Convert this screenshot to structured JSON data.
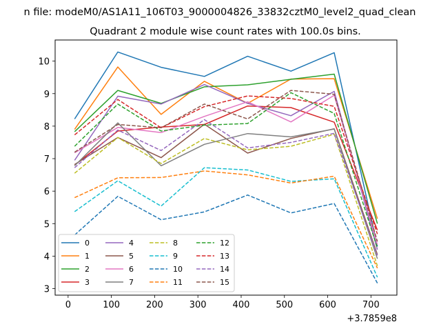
{
  "chart_data": {
    "type": "line",
    "title": "Quadrant 2 module wise count rates with 100.0s bins.",
    "suptitle": "n file: modeM0/AS1A11_106T03_9000004826_33832cztM0_level2_quad_clean",
    "offset_label": "+3.7859e8",
    "xlabel": "",
    "ylabel": "",
    "xlim": [
      -30,
      760
    ],
    "ylim": [
      2.8,
      10.65
    ],
    "x_ticks": [
      0,
      100,
      200,
      300,
      400,
      500,
      600,
      700
    ],
    "y_ticks": [
      3,
      4,
      5,
      6,
      7,
      8,
      9,
      10
    ],
    "grid": false,
    "legend": {
      "placement": "lower-left",
      "columns": 4
    },
    "x": [
      15,
      115,
      215,
      315,
      415,
      515,
      615,
      715
    ],
    "series": [
      {
        "name": "0",
        "color": "#1f77b4",
        "dash": "solid",
        "values": [
          8.22,
          10.28,
          9.81,
          9.53,
          10.15,
          9.69,
          10.26,
          4.3
        ]
      },
      {
        "name": "1",
        "color": "#ff7f0e",
        "dash": "solid",
        "values": [
          7.9,
          9.82,
          8.36,
          9.38,
          8.7,
          9.45,
          9.46,
          5.15
        ]
      },
      {
        "name": "2",
        "color": "#2ca02c",
        "dash": "solid",
        "values": [
          7.83,
          9.1,
          8.7,
          9.21,
          9.27,
          9.44,
          9.6,
          5.0
        ]
      },
      {
        "name": "3",
        "color": "#d62728",
        "dash": "solid",
        "values": [
          6.8,
          7.85,
          7.97,
          8.05,
          8.62,
          8.57,
          8.12,
          4.8
        ]
      },
      {
        "name": "4",
        "color": "#9467bd",
        "dash": "solid",
        "values": [
          6.95,
          8.92,
          8.68,
          9.28,
          8.7,
          8.32,
          9.07,
          4.2
        ]
      },
      {
        "name": "5",
        "color": "#8c564b",
        "dash": "solid",
        "values": [
          6.82,
          7.65,
          7.03,
          8.06,
          7.17,
          7.62,
          7.92,
          4.05
        ]
      },
      {
        "name": "6",
        "color": "#e377c2",
        "dash": "solid",
        "values": [
          7.18,
          7.96,
          7.8,
          8.3,
          8.75,
          8.13,
          8.95,
          4.35
        ]
      },
      {
        "name": "7",
        "color": "#7f7f7f",
        "dash": "solid",
        "values": [
          6.78,
          8.1,
          6.78,
          7.44,
          7.77,
          7.67,
          7.91,
          3.92
        ]
      },
      {
        "name": "8",
        "color": "#bcbd22",
        "dash": "dashed",
        "values": [
          6.55,
          7.65,
          6.85,
          7.62,
          7.27,
          7.38,
          7.75,
          3.7
        ]
      },
      {
        "name": "9",
        "color": "#17becf",
        "dash": "dashed",
        "values": [
          5.37,
          6.32,
          5.54,
          6.72,
          6.65,
          6.3,
          6.38,
          3.35
        ]
      },
      {
        "name": "10",
        "color": "#1f77b4",
        "dash": "dashed",
        "values": [
          4.65,
          5.84,
          5.12,
          5.36,
          5.88,
          5.33,
          5.62,
          3.17
        ]
      },
      {
        "name": "11",
        "color": "#ff7f0e",
        "dash": "dashed",
        "values": [
          5.8,
          6.41,
          6.42,
          6.62,
          6.5,
          6.25,
          6.46,
          3.63
        ]
      },
      {
        "name": "12",
        "color": "#2ca02c",
        "dash": "dashed",
        "values": [
          7.38,
          8.68,
          7.85,
          8.03,
          8.08,
          9.03,
          8.39,
          4.25
        ]
      },
      {
        "name": "13",
        "color": "#d62728",
        "dash": "dashed",
        "values": [
          7.73,
          8.82,
          7.95,
          8.6,
          8.93,
          8.85,
          8.61,
          4.68
        ]
      },
      {
        "name": "14",
        "color": "#9467bd",
        "dash": "dashed",
        "values": [
          6.72,
          7.88,
          7.25,
          8.2,
          7.33,
          7.5,
          7.78,
          4.02
        ]
      },
      {
        "name": "15",
        "color": "#8c564b",
        "dash": "dashed",
        "values": [
          7.2,
          8.05,
          7.95,
          8.68,
          8.22,
          9.1,
          8.98,
          4.45
        ]
      }
    ]
  }
}
